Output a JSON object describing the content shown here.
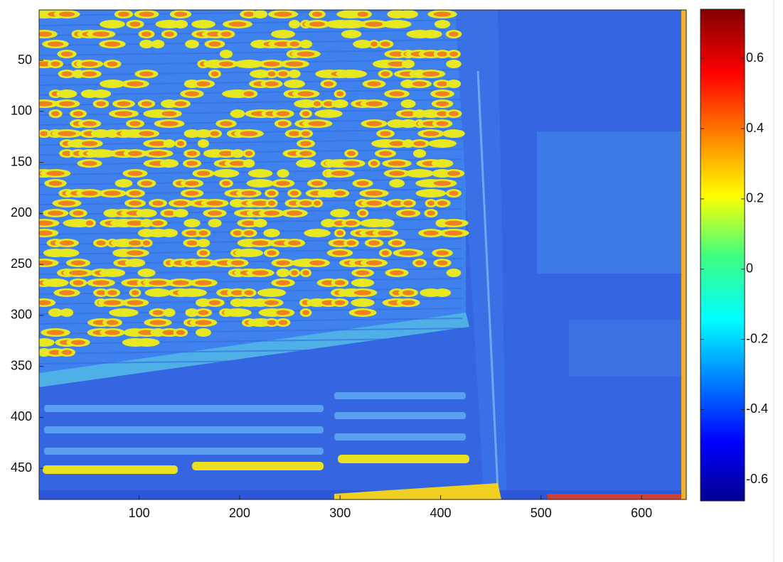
{
  "chart_data": {
    "type": "heatmap",
    "xlim": [
      0.5,
      644.5
    ],
    "ylim": [
      0.5,
      480.5
    ],
    "y_reversed": true,
    "xticks": [
      100,
      200,
      300,
      400,
      500,
      600
    ],
    "yticks": [
      50,
      100,
      150,
      200,
      250,
      300,
      350,
      400,
      450
    ],
    "colorbar": {
      "clim": [
        -0.66,
        0.74
      ],
      "ticks": [
        -0.6,
        -0.4,
        -0.2,
        0,
        0.2,
        0.4,
        0.6
      ]
    }
  }
}
